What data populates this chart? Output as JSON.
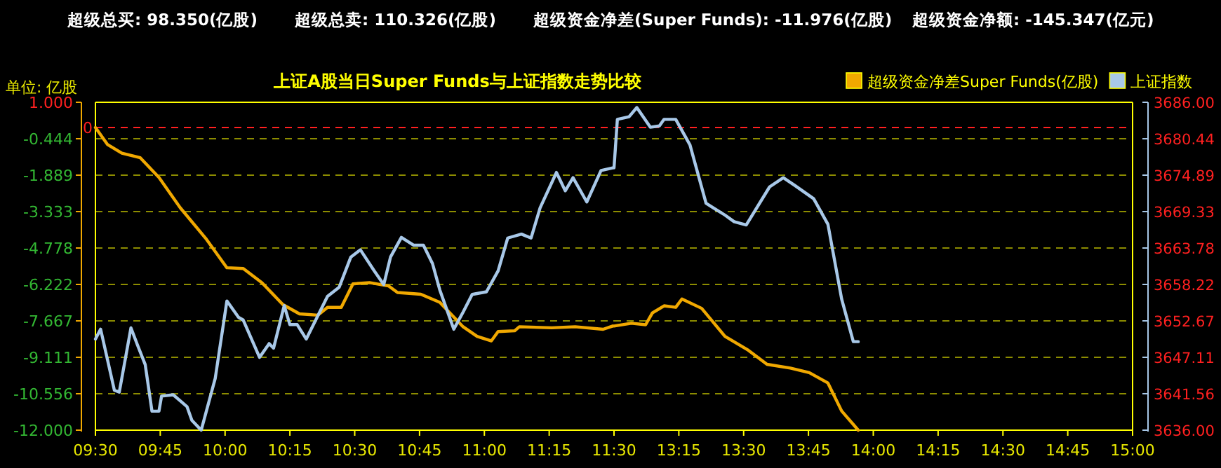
{
  "chart_data": [
    {
      "type": "line",
      "title": "上证A股当日Super Funds与上证指数走势比较",
      "ylabel": "单位: 亿股",
      "annotations": [
        "超级总买: 98.350(亿股)",
        "超级总卖: 110.326(亿股)",
        "超级资金净差(Super Funds): -11.976(亿股)",
        "超级资金净额: -145.347(亿元)"
      ],
      "xlim": [
        9.5,
        11.5
      ],
      "xticks": [
        {
          "value": 9.5,
          "label": "09:30"
        },
        {
          "value": 9.75,
          "label": "09:45"
        },
        {
          "value": 10,
          "label": "10:00"
        },
        {
          "value": 10.25,
          "label": "10:15"
        },
        {
          "value": 10.5,
          "label": "10:30"
        },
        {
          "value": 10.75,
          "label": "10:45"
        },
        {
          "value": 11,
          "label": "11:00"
        },
        {
          "value": 11.25,
          "label": "11:15"
        },
        {
          "value": 11.5,
          "label": "11:30"
        }
      ],
      "ylim": [
        -12,
        1
      ],
      "yticks": [
        {
          "value": 1,
          "label": "1.000"
        },
        {
          "value": -0.444,
          "label": "-0.444"
        },
        {
          "value": -1.889,
          "label": "-1.889"
        },
        {
          "value": -3.333,
          "label": "-3.333"
        },
        {
          "value": -4.778,
          "label": "-4.778"
        },
        {
          "value": -6.222,
          "label": "-6.222"
        },
        {
          "value": -7.667,
          "label": "-7.667"
        },
        {
          "value": -9.111,
          "label": "-9.111"
        },
        {
          "value": -10.556,
          "label": "-10.556"
        },
        {
          "value": -12,
          "label": "-12.000"
        }
      ],
      "y2lim": [
        3636,
        3686
      ],
      "grid": "y",
      "ref_lines": [
        {
          "axis": "y",
          "value": 0,
          "label": "0",
          "color": "#ff2020",
          "line_style": "dashed"
        }
      ],
      "series": [
        {
          "color": "#f0a800",
          "x": [
            9.5,
            9.547,
            9.602,
            9.673,
            9.745,
            9.827,
            9.925,
            10.007,
            10.07,
            10.142,
            10.223,
            10.287,
            10.358,
            10.395,
            10.448,
            10.493,
            10.557,
            10.63,
            10.665,
            10.755,
            10.828,
            10.918,
            10.972,
            11.027,
            11.053,
            11.117,
            11.135,
            11.26,
            11.35,
            11.458,
            11.495
          ],
          "values": [
            0,
            -0.68,
            -1.02,
            -1.2,
            -1.98,
            -3.18,
            -4.39,
            -5.56,
            -5.59,
            -6.15,
            -7.02,
            -7.39,
            -7.44,
            -7.13,
            -7.13,
            -6.2,
            -6.15,
            -6.28,
            -6.54,
            -6.61,
            -6.93,
            -7.9,
            -8.28,
            -8.46,
            -8.09,
            -8.06,
            -7.9,
            -7.94,
            -7.9,
            -8.0,
            -7.87
          ]
        },
        {
          "color": "#a8c8e8",
          "axis": "y2",
          "x": [
            9.5,
            9.52,
            9.573,
            9.592,
            9.637,
            9.663,
            9.692,
            9.718,
            9.745,
            9.755,
            9.8,
            9.853,
            9.872,
            9.908,
            9.962,
            10.007,
            10.052,
            10.07,
            10.133,
            10.17,
            10.187,
            10.228,
            10.25,
            10.278,
            10.313,
            10.395,
            10.44,
            10.485,
            10.522,
            10.575,
            10.612,
            10.638,
            10.68,
            10.728,
            10.765,
            10.8,
            10.828,
            10.882,
            10.918,
            10.953,
            11.008,
            11.053,
            11.09,
            11.143,
            11.18,
            11.215,
            11.278,
            11.312,
            11.342,
            11.395,
            11.45,
            11.495
          ],
          "values": [
            3649.9,
            3651.4,
            3642.1,
            3641.8,
            3651.6,
            3648.9,
            3646.0,
            3638.9,
            3638.9,
            3641.2,
            3641.4,
            3639.6,
            3637.5,
            3636.0,
            3643.9,
            3655.7,
            3653.2,
            3652.8,
            3647.1,
            3649.2,
            3648.5,
            3655.0,
            3652.1,
            3652.1,
            3649.9,
            3656.4,
            3657.8,
            3662.4,
            3663.5,
            3660.3,
            3658.2,
            3662.4,
            3665.4,
            3664.2,
            3664.2,
            3661.4,
            3657.4,
            3651.4,
            3654.0,
            3656.7,
            3657.1,
            3660.3,
            3665.3,
            3665.9,
            3665.3,
            3669.9,
            3675.3,
            3672.5,
            3674.5,
            3670.8,
            3675.6,
            3676.0
          ]
        }
      ]
    },
    {
      "type": "line",
      "xlim": [
        13,
        15
      ],
      "xticks": [
        {
          "value": 13.25,
          "label": "13:15"
        },
        {
          "value": 13.5,
          "label": "13:30"
        },
        {
          "value": 13.75,
          "label": "13:45"
        },
        {
          "value": 14,
          "label": "14:00"
        },
        {
          "value": 14.25,
          "label": "14:15"
        },
        {
          "value": 14.5,
          "label": "14:30"
        },
        {
          "value": 14.75,
          "label": "14:45"
        },
        {
          "value": 15,
          "label": "15:00"
        }
      ],
      "ylim": [
        -12,
        1
      ],
      "y2lim": [
        3636,
        3686
      ],
      "y2ticks": [
        {
          "value": 3686,
          "label": "3686.00"
        },
        {
          "value": 3680.44,
          "label": "3680.44"
        },
        {
          "value": 3674.89,
          "label": "3674.89"
        },
        {
          "value": 3669.33,
          "label": "3669.33"
        },
        {
          "value": 3663.78,
          "label": "3663.78"
        },
        {
          "value": 3658.22,
          "label": "3658.22"
        },
        {
          "value": 3652.67,
          "label": "3652.67"
        },
        {
          "value": 3647.11,
          "label": "3647.11"
        },
        {
          "value": 3641.56,
          "label": "3641.56"
        },
        {
          "value": 3636,
          "label": "3636.00"
        }
      ],
      "grid": "y",
      "legend": "top right",
      "ref_lines": [
        {
          "axis": "y",
          "value": 0,
          "color": "#ff2020",
          "line_style": "dashed"
        }
      ],
      "series": [
        {
          "name": "超级资金净差Super Funds(亿股)",
          "color": "#f0a800",
          "x": [
            13.0,
            13.067,
            13.122,
            13.148,
            13.193,
            13.238,
            13.262,
            13.338,
            13.428,
            13.518,
            13.59,
            13.68,
            13.753,
            13.825,
            13.878,
            13.942
          ],
          "values": [
            -7.87,
            -7.76,
            -7.82,
            -7.35,
            -7.07,
            -7.13,
            -6.8,
            -7.17,
            -8.28,
            -8.83,
            -9.39,
            -9.54,
            -9.72,
            -10.13,
            -11.24,
            -12.0
          ]
        },
        {
          "name": "上证指数",
          "color": "#a8c8e8",
          "axis": "y2",
          "x": [
            13.0,
            13.013,
            13.058,
            13.088,
            13.14,
            13.175,
            13.193,
            13.238,
            13.293,
            13.355,
            13.428,
            13.463,
            13.51,
            13.6,
            13.653,
            13.698,
            13.77,
            13.825,
            13.878,
            13.923,
            13.942
          ],
          "values": [
            3676.0,
            3683.4,
            3683.8,
            3685.2,
            3682.2,
            3682.4,
            3683.4,
            3683.4,
            3679.5,
            3670.6,
            3668.8,
            3667.8,
            3667.3,
            3673.1,
            3674.5,
            3673.3,
            3671.3,
            3667.4,
            3656.0,
            3649.5,
            3649.5
          ]
        }
      ]
    }
  ]
}
